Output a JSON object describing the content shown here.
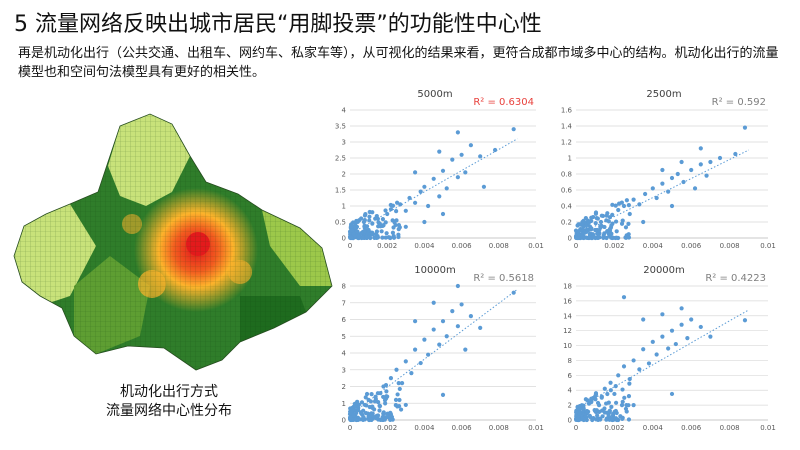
{
  "slide": {
    "title": "5 流量网络反映出城市居民“用脚投票”的功能性中心性",
    "intro": "再是机动化出行（公共交通、出租车、网约车、私家车等），从可视化的结果来看，更符合成都市域多中心的结构。机动化出行的流量模型也和空间句法模型具有更好的相关性。",
    "map_caption": [
      "机动化出行方式",
      "流量网络中心性分布"
    ]
  },
  "colors": {
    "point": "#5b9bd5",
    "trend": "#5b9bd5",
    "grid": "#d9d9d9",
    "axis_text": "#595959",
    "r2_highlight": "#e8413c",
    "r2_normal": "#7f7f7f",
    "map_high": "#e31a1c",
    "map_mid": "#fdb32b",
    "map_low": "#1e6b1e",
    "map_light": "#c8e27a"
  },
  "chart_data": [
    {
      "type": "scatter",
      "title": "5000m",
      "r2_label": "R² = 0.6304",
      "r2_highlight": true,
      "xlim": [
        0,
        0.01
      ],
      "ylim": [
        0,
        4
      ],
      "xticks": [
        "0",
        "0.002",
        "0.004",
        "0.006",
        "0.008",
        "0.01"
      ],
      "yticks": [
        "0",
        "0.5",
        "1",
        "1.5",
        "2",
        "2.5",
        "3",
        "3.5",
        "4"
      ],
      "trendline": [
        [
          0,
          0.12
        ],
        [
          0.009,
          3.1
        ]
      ],
      "points": [
        [
          0.0002,
          0.12
        ],
        [
          0.0004,
          0.2
        ],
        [
          0.0006,
          0.15
        ],
        [
          0.0008,
          0.3
        ],
        [
          0.001,
          0.25
        ],
        [
          0.0012,
          0.45
        ],
        [
          0.0015,
          0.6
        ],
        [
          0.0018,
          0.4
        ],
        [
          0.002,
          0.75
        ],
        [
          0.0022,
          0.9
        ],
        [
          0.0025,
          0.55
        ],
        [
          0.0027,
          1.05
        ],
        [
          0.003,
          0.85
        ],
        [
          0.0032,
          1.25
        ],
        [
          0.0035,
          1.1
        ],
        [
          0.0038,
          1.45
        ],
        [
          0.004,
          1.6
        ],
        [
          0.0042,
          1.0
        ],
        [
          0.0045,
          1.85
        ],
        [
          0.0048,
          1.3
        ],
        [
          0.005,
          2.1
        ],
        [
          0.0052,
          1.55
        ],
        [
          0.0055,
          2.45
        ],
        [
          0.0058,
          1.9
        ],
        [
          0.006,
          2.6
        ],
        [
          0.0062,
          2.05
        ],
        [
          0.0065,
          2.9
        ],
        [
          0.007,
          2.55
        ],
        [
          0.0072,
          1.6
        ],
        [
          0.0078,
          2.75
        ],
        [
          0.0088,
          3.4
        ],
        [
          0.0058,
          3.3
        ],
        [
          0.0048,
          2.7
        ],
        [
          0.0035,
          2.05
        ],
        [
          0.003,
          0.35
        ],
        [
          0.004,
          0.5
        ],
        [
          0.005,
          0.75
        ]
      ]
    },
    {
      "type": "scatter",
      "title": "2500m",
      "r2_label": "R² = 0.592",
      "r2_highlight": false,
      "xlim": [
        0,
        0.01
      ],
      "ylim": [
        0,
        1.6
      ],
      "xticks": [
        "0",
        "0.002",
        "0.004",
        "0.006",
        "0.008",
        "0.01"
      ],
      "yticks": [
        "0",
        "0.2",
        "0.4",
        "0.6",
        "0.8",
        "1",
        "1.2",
        "1.4",
        "1.6"
      ],
      "trendline": [
        [
          0,
          0.03
        ],
        [
          0.009,
          1.1
        ]
      ],
      "points": [
        [
          0.0002,
          0.04
        ],
        [
          0.0005,
          0.08
        ],
        [
          0.0008,
          0.12
        ],
        [
          0.001,
          0.1
        ],
        [
          0.0013,
          0.2
        ],
        [
          0.0016,
          0.28
        ],
        [
          0.0019,
          0.18
        ],
        [
          0.0022,
          0.35
        ],
        [
          0.0025,
          0.4
        ],
        [
          0.0028,
          0.3
        ],
        [
          0.003,
          0.48
        ],
        [
          0.0033,
          0.42
        ],
        [
          0.0036,
          0.55
        ],
        [
          0.004,
          0.62
        ],
        [
          0.0042,
          0.5
        ],
        [
          0.0045,
          0.68
        ],
        [
          0.0048,
          0.58
        ],
        [
          0.005,
          0.75
        ],
        [
          0.0053,
          0.8
        ],
        [
          0.0056,
          0.7
        ],
        [
          0.006,
          0.85
        ],
        [
          0.0062,
          0.62
        ],
        [
          0.0065,
          0.92
        ],
        [
          0.0068,
          0.78
        ],
        [
          0.007,
          0.95
        ],
        [
          0.0075,
          1.0
        ],
        [
          0.0083,
          1.05
        ],
        [
          0.0088,
          1.38
        ],
        [
          0.0065,
          1.12
        ],
        [
          0.0055,
          0.95
        ],
        [
          0.0045,
          0.85
        ],
        [
          0.0035,
          0.2
        ],
        [
          0.005,
          0.4
        ]
      ]
    },
    {
      "type": "scatter",
      "title": "10000m",
      "r2_label": "R² = 0.5618",
      "r2_highlight": false,
      "xlim": [
        0,
        0.01
      ],
      "ylim": [
        0,
        8
      ],
      "xticks": [
        "0",
        "0.002",
        "0.004",
        "0.006",
        "0.008",
        "0.01"
      ],
      "yticks": [
        "0",
        "1",
        "2",
        "3",
        "4",
        "5",
        "6",
        "7",
        "8"
      ],
      "trendline": [
        [
          0,
          0.3
        ],
        [
          0.009,
          7.8
        ]
      ],
      "points": [
        [
          0.0002,
          0.3
        ],
        [
          0.0004,
          0.6
        ],
        [
          0.0006,
          0.4
        ],
        [
          0.0008,
          0.9
        ],
        [
          0.001,
          1.2
        ],
        [
          0.0012,
          0.8
        ],
        [
          0.0015,
          1.6
        ],
        [
          0.0018,
          2.0
        ],
        [
          0.002,
          1.4
        ],
        [
          0.0022,
          2.5
        ],
        [
          0.0025,
          3.0
        ],
        [
          0.0028,
          2.2
        ],
        [
          0.003,
          3.5
        ],
        [
          0.0033,
          2.8
        ],
        [
          0.0035,
          4.2
        ],
        [
          0.0038,
          3.4
        ],
        [
          0.004,
          4.8
        ],
        [
          0.0042,
          3.9
        ],
        [
          0.0045,
          5.4
        ],
        [
          0.0048,
          4.5
        ],
        [
          0.005,
          5.9
        ],
        [
          0.0052,
          5.0
        ],
        [
          0.0055,
          6.5
        ],
        [
          0.0058,
          5.6
        ],
        [
          0.006,
          6.9
        ],
        [
          0.0062,
          4.2
        ],
        [
          0.0065,
          6.2
        ],
        [
          0.007,
          5.5
        ],
        [
          0.0088,
          7.6
        ],
        [
          0.0058,
          8.0
        ],
        [
          0.0045,
          7.0
        ],
        [
          0.0035,
          5.9
        ],
        [
          0.003,
          0.9
        ],
        [
          0.005,
          1.5
        ]
      ]
    },
    {
      "type": "scatter",
      "title": "20000m",
      "r2_label": "R² = 0.4223",
      "r2_highlight": false,
      "xlim": [
        0,
        0.01
      ],
      "ylim": [
        0,
        18
      ],
      "xticks": [
        "0",
        "0.002",
        "0.004",
        "0.006",
        "0.008",
        "0.01"
      ],
      "yticks": [
        "0",
        "2",
        "4",
        "6",
        "8",
        "10",
        "12",
        "14",
        "16",
        "18"
      ],
      "trendline": [
        [
          0,
          1.5
        ],
        [
          0.009,
          14.8
        ]
      ],
      "points": [
        [
          0.0002,
          0.8
        ],
        [
          0.0004,
          1.5
        ],
        [
          0.0006,
          1.0
        ],
        [
          0.0008,
          2.5
        ],
        [
          0.001,
          3.2
        ],
        [
          0.0012,
          2.0
        ],
        [
          0.0015,
          4.2
        ],
        [
          0.0018,
          5.0
        ],
        [
          0.002,
          3.5
        ],
        [
          0.0022,
          6.0
        ],
        [
          0.0025,
          7.2
        ],
        [
          0.0028,
          5.5
        ],
        [
          0.003,
          8.0
        ],
        [
          0.0033,
          6.8
        ],
        [
          0.0035,
          9.5
        ],
        [
          0.0038,
          7.6
        ],
        [
          0.004,
          10.5
        ],
        [
          0.0042,
          8.8
        ],
        [
          0.0045,
          11.2
        ],
        [
          0.0048,
          9.6
        ],
        [
          0.005,
          12.0
        ],
        [
          0.0052,
          10.2
        ],
        [
          0.0055,
          12.8
        ],
        [
          0.0058,
          11.0
        ],
        [
          0.006,
          13.5
        ],
        [
          0.0065,
          12.5
        ],
        [
          0.007,
          11.2
        ],
        [
          0.0088,
          13.4
        ],
        [
          0.0055,
          15.0
        ],
        [
          0.0045,
          14.2
        ],
        [
          0.0035,
          13.5
        ],
        [
          0.0025,
          16.5
        ],
        [
          0.003,
          2.0
        ],
        [
          0.005,
          3.5
        ]
      ]
    }
  ]
}
